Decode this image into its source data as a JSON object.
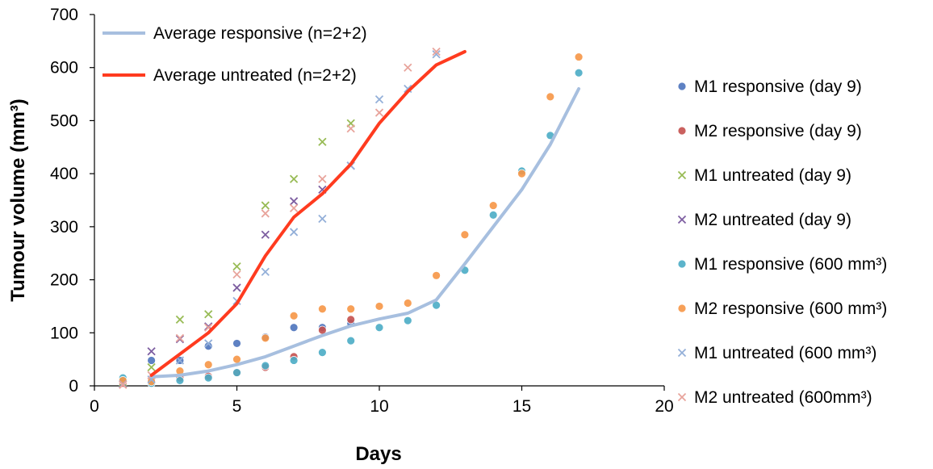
{
  "chart_data": {
    "type": "scatter",
    "title": "",
    "xlabel": "Days",
    "ylabel": "Tumour volume (mm³)",
    "xlim": [
      0,
      20
    ],
    "ylim": [
      0,
      700
    ],
    "xticks": [
      0,
      5,
      10,
      15,
      20
    ],
    "yticks": [
      0,
      100,
      200,
      300,
      400,
      500,
      600,
      700
    ],
    "grid": false,
    "lines": [
      {
        "name": "Average responsive (n=2+2)",
        "color": "#a7bfdf",
        "x": [
          2,
          3,
          4,
          5,
          6,
          7,
          8,
          9,
          10,
          11,
          12,
          13,
          14,
          15,
          16,
          17
        ],
        "y": [
          17,
          20,
          28,
          40,
          55,
          75,
          95,
          113,
          126,
          137,
          162,
          230,
          300,
          370,
          455,
          560
        ]
      },
      {
        "name": "Average untreated (n=2+2)",
        "color": "#ff3b1f",
        "x": [
          2,
          3,
          4,
          5,
          6,
          7,
          8,
          9,
          10,
          11,
          12,
          13
        ],
        "y": [
          20,
          60,
          100,
          155,
          245,
          318,
          362,
          418,
          495,
          555,
          605,
          630
        ]
      }
    ],
    "series": [
      {
        "name": "M1 responsive (day 9)",
        "marker": "circle",
        "color": "#4d74bd",
        "x": [
          1,
          2,
          3,
          4,
          5,
          6,
          7,
          8,
          9
        ],
        "y": [
          8,
          48,
          48,
          75,
          80,
          92,
          110,
          110,
          118
        ]
      },
      {
        "name": "M2 responsive (day 9)",
        "marker": "circle",
        "color": "#c5504e",
        "x": [
          1,
          2,
          3,
          4,
          5,
          6,
          7,
          8,
          9
        ],
        "y": [
          5,
          12,
          15,
          18,
          25,
          35,
          55,
          105,
          125
        ]
      },
      {
        "name": "M1 untreated (day 9)",
        "marker": "x",
        "color": "#98bb55",
        "x": [
          1,
          2,
          3,
          4,
          5,
          6,
          7,
          8,
          9
        ],
        "y": [
          6,
          35,
          125,
          135,
          225,
          340,
          390,
          460,
          495
        ]
      },
      {
        "name": "M2 untreated (day 9)",
        "marker": "x",
        "color": "#7d5ea1",
        "x": [
          1,
          2,
          3,
          4,
          5,
          6,
          7,
          8,
          9
        ],
        "y": [
          4,
          65,
          88,
          112,
          185,
          285,
          348,
          370,
          415
        ]
      },
      {
        "name": "M1 responsive (600 mm³)",
        "marker": "circle",
        "color": "#4bacc6",
        "x": [
          1,
          2,
          3,
          4,
          5,
          6,
          7,
          8,
          9,
          10,
          11,
          12,
          13,
          14,
          15,
          16,
          17
        ],
        "y": [
          15,
          5,
          10,
          15,
          25,
          38,
          48,
          63,
          85,
          110,
          123,
          152,
          218,
          322,
          405,
          472,
          590
        ]
      },
      {
        "name": "M2 responsive (600 mm³)",
        "marker": "circle",
        "color": "#f79646",
        "x": [
          1,
          2,
          3,
          4,
          5,
          6,
          7,
          8,
          9,
          10,
          11,
          12,
          13,
          14,
          15,
          16,
          17
        ],
        "y": [
          10,
          8,
          28,
          40,
          50,
          90,
          132,
          145,
          145,
          150,
          156,
          208,
          285,
          340,
          400,
          545,
          620
        ]
      },
      {
        "name": "M1 untreated (600 mm³)",
        "marker": "x",
        "color": "#94b0d9",
        "x": [
          1,
          2,
          3,
          4,
          5,
          6,
          7,
          8,
          9,
          10,
          11,
          12
        ],
        "y": [
          3,
          12,
          48,
          80,
          160,
          215,
          290,
          315,
          415,
          540,
          560,
          625
        ]
      },
      {
        "name": "M2 untreated (600mm³)",
        "marker": "x",
        "color": "#e8a49c",
        "x": [
          1,
          2,
          3,
          4,
          5,
          6,
          7,
          8,
          9,
          10,
          11,
          12
        ],
        "y": [
          2,
          20,
          90,
          110,
          210,
          325,
          335,
          390,
          485,
          515,
          600,
          630
        ]
      }
    ],
    "legend_placement": "right"
  }
}
